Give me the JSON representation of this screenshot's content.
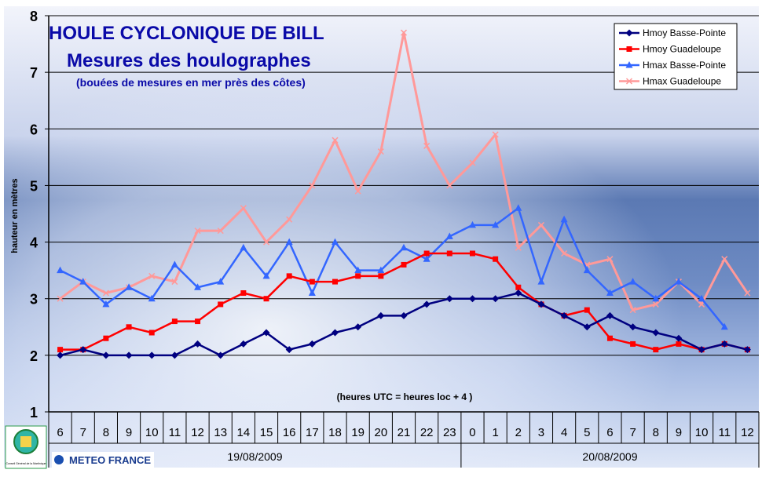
{
  "chart_data": {
    "type": "line",
    "title": "HOULE CYCLONIQUE DE BILL",
    "subtitle": "Mesures des houlographes",
    "subtitle2": "(bouées de mesures en mer près des côtes)",
    "ylabel": "hauteur en mètres",
    "xnote": "(heures UTC = heures loc + 4 )",
    "ylim": [
      1,
      8
    ],
    "yticks": [
      1,
      2,
      3,
      4,
      5,
      6,
      7,
      8
    ],
    "grid": true,
    "legend_position": "top-right",
    "categories": [
      "6",
      "7",
      "8",
      "9",
      "10",
      "11",
      "12",
      "13",
      "14",
      "15",
      "16",
      "17",
      "18",
      "19",
      "20",
      "21",
      "22",
      "23",
      "0",
      "1",
      "2",
      "3",
      "4",
      "5",
      "6",
      "7",
      "8",
      "9",
      "10",
      "11",
      "12"
    ],
    "date_groups": [
      {
        "label": "19/08/2009",
        "start": 0,
        "end": 17
      },
      {
        "label": "20/08/2009",
        "start": 18,
        "end": 30
      }
    ],
    "series": [
      {
        "name": "Hmoy Basse-Pointe",
        "color": "#000080",
        "marker": "diamond",
        "values": [
          2.0,
          2.1,
          2.0,
          2.0,
          2.0,
          2.0,
          2.2,
          2.0,
          2.2,
          2.4,
          2.1,
          2.2,
          2.4,
          2.5,
          2.7,
          2.7,
          2.9,
          3.0,
          3.0,
          3.0,
          3.1,
          2.9,
          2.7,
          2.5,
          2.7,
          2.5,
          2.4,
          2.3,
          2.1,
          2.2,
          2.1
        ]
      },
      {
        "name": "Hmoy Guadeloupe",
        "color": "#ff0000",
        "marker": "square",
        "values": [
          2.1,
          2.1,
          2.3,
          2.5,
          2.4,
          2.6,
          2.6,
          2.9,
          3.1,
          3.0,
          3.4,
          3.3,
          3.3,
          3.4,
          3.4,
          3.6,
          3.8,
          3.8,
          3.8,
          3.7,
          3.2,
          2.9,
          2.7,
          2.8,
          2.3,
          2.2,
          2.1,
          2.2,
          2.1,
          2.2,
          2.1
        ]
      },
      {
        "name": "Hmax Basse-Pointe",
        "color": "#3366ff",
        "marker": "triangle",
        "values": [
          3.5,
          3.3,
          2.9,
          3.2,
          3.0,
          3.6,
          3.2,
          3.3,
          3.9,
          3.4,
          4.0,
          3.1,
          4.0,
          3.5,
          3.5,
          3.9,
          3.7,
          4.1,
          4.3,
          4.3,
          4.6,
          3.3,
          4.4,
          3.5,
          3.1,
          3.3,
          3.0,
          3.3,
          3.0,
          2.5,
          null
        ]
      },
      {
        "name": "Hmax Guadeloupe",
        "color": "#ff9999",
        "marker": "x",
        "values": [
          3.0,
          3.3,
          3.1,
          3.2,
          3.4,
          3.3,
          4.2,
          4.2,
          4.6,
          4.0,
          4.4,
          5.0,
          5.8,
          4.9,
          5.6,
          7.7,
          5.7,
          5.0,
          5.4,
          5.9,
          3.9,
          4.3,
          3.8,
          3.6,
          3.7,
          2.8,
          2.9,
          3.3,
          2.9,
          3.7,
          3.1
        ]
      }
    ]
  },
  "branding": {
    "meteo_label": "METEO FRANCE",
    "logo_small_text": "Conseil Général de la Martinique"
  }
}
